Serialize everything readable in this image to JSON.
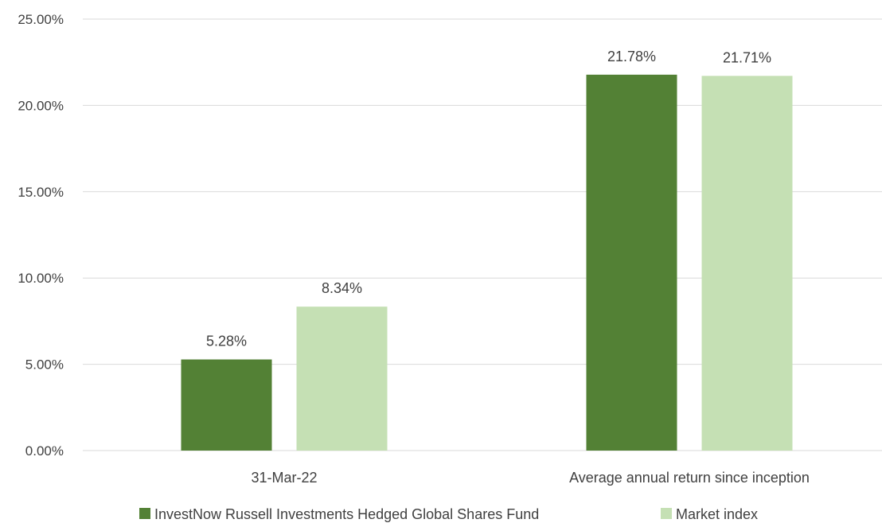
{
  "chart_data": {
    "type": "bar",
    "categories": [
      "31-Mar-22",
      "Average annual return since inception"
    ],
    "series": [
      {
        "name": "InvestNow Russell Investments Hedged Global Shares Fund",
        "values": [
          5.28,
          21.78
        ],
        "labels": [
          "5.28%",
          "21.78%"
        ],
        "color": "#538135"
      },
      {
        "name": "Market index",
        "values": [
          8.34,
          21.71
        ],
        "labels": [
          "8.34%",
          "21.71%"
        ],
        "color": "#c5e0b4"
      }
    ],
    "yticks": [
      0,
      5,
      10,
      15,
      20,
      25
    ],
    "ytick_labels": [
      "0.00%",
      "5.00%",
      "10.00%",
      "15.00%",
      "20.00%",
      "25.00%"
    ],
    "ylim": [
      0,
      25
    ],
    "title": "",
    "xlabel": "",
    "ylabel": "",
    "grid": true,
    "legend_position": "bottom",
    "gridline_color": "#d9d9d9",
    "text_color": "#404040"
  }
}
